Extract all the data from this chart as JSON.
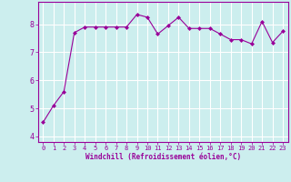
{
  "x": [
    0,
    1,
    2,
    3,
    4,
    5,
    6,
    7,
    8,
    9,
    10,
    11,
    12,
    13,
    14,
    15,
    16,
    17,
    18,
    19,
    20,
    21,
    22,
    23
  ],
  "y": [
    4.5,
    5.1,
    5.6,
    7.7,
    7.9,
    7.9,
    7.9,
    7.9,
    7.9,
    8.35,
    8.25,
    7.65,
    7.95,
    8.25,
    7.85,
    7.85,
    7.85,
    7.65,
    7.45,
    7.45,
    7.3,
    8.1,
    7.35,
    7.75
  ],
  "line_color": "#990099",
  "marker": "D",
  "marker_size": 2,
  "bg_color": "#cceeee",
  "grid_color": "#ffffff",
  "xlabel": "Windchill (Refroidissement éolien,°C)",
  "ylabel": "",
  "ylim": [
    3.8,
    8.8
  ],
  "xlim": [
    -0.5,
    23.5
  ],
  "yticks": [
    4,
    5,
    6,
    7,
    8
  ],
  "xticks": [
    0,
    1,
    2,
    3,
    4,
    5,
    6,
    7,
    8,
    9,
    10,
    11,
    12,
    13,
    14,
    15,
    16,
    17,
    18,
    19,
    20,
    21,
    22,
    23
  ],
  "tick_label_color": "#990099",
  "spine_color": "#990099",
  "font_family": "monospace",
  "xlabel_color": "#990099",
  "ytick_fontsize": 6,
  "xtick_fontsize": 5
}
